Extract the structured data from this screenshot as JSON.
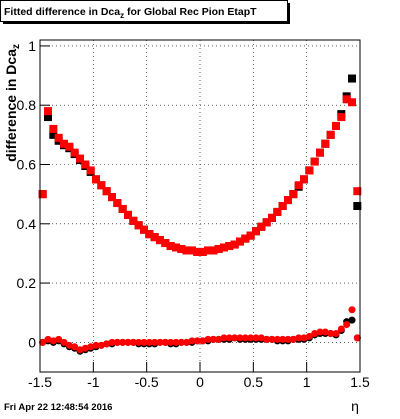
{
  "chart_data": {
    "type": "scatter",
    "title": [
      "Fitted difference in Dca",
      "z",
      " for Global Rec Pion EtapT"
    ],
    "y_label": [
      "difference in Dca",
      "z"
    ],
    "x_label": "η",
    "footer": "Fri Apr 22 12:48:54 2016",
    "xlim": [
      -1.5,
      1.5
    ],
    "ylim": [
      -0.1,
      1.02
    ],
    "xticks": [
      -1.5,
      -1,
      -0.5,
      0,
      0.5,
      1,
      1.5
    ],
    "yticks": [
      0,
      0.2,
      0.4,
      0.6,
      0.8,
      1
    ],
    "grid": true,
    "x": [
      -1.475,
      -1.425,
      -1.375,
      -1.325,
      -1.275,
      -1.225,
      -1.175,
      -1.125,
      -1.075,
      -1.025,
      -0.975,
      -0.925,
      -0.875,
      -0.825,
      -0.775,
      -0.725,
      -0.675,
      -0.625,
      -0.575,
      -0.525,
      -0.475,
      -0.425,
      -0.375,
      -0.325,
      -0.275,
      -0.225,
      -0.175,
      -0.125,
      -0.075,
      -0.025,
      0.025,
      0.075,
      0.125,
      0.175,
      0.225,
      0.275,
      0.325,
      0.375,
      0.425,
      0.475,
      0.525,
      0.575,
      0.625,
      0.675,
      0.725,
      0.775,
      0.825,
      0.875,
      0.925,
      0.975,
      1.025,
      1.075,
      1.125,
      1.175,
      1.225,
      1.275,
      1.325,
      1.375,
      1.425,
      1.475
    ],
    "series": [
      {
        "color": "#000000",
        "marker": "square",
        "values": [
          0.5,
          0.76,
          0.7,
          0.68,
          0.665,
          0.655,
          0.635,
          0.615,
          0.595,
          0.575,
          0.55,
          0.53,
          0.51,
          0.49,
          0.47,
          0.45,
          0.43,
          0.41,
          0.395,
          0.38,
          0.365,
          0.355,
          0.345,
          0.335,
          0.325,
          0.32,
          0.315,
          0.31,
          0.31,
          0.305,
          0.305,
          0.31,
          0.31,
          0.315,
          0.32,
          0.325,
          0.33,
          0.34,
          0.35,
          0.36,
          0.375,
          0.39,
          0.405,
          0.42,
          0.44,
          0.46,
          0.48,
          0.5,
          0.525,
          0.55,
          0.58,
          0.61,
          0.64,
          0.67,
          0.7,
          0.73,
          0.77,
          0.83,
          0.89,
          0.46
        ]
      },
      {
        "color": "#ff0000",
        "marker": "square",
        "values": [
          0.5,
          0.78,
          0.72,
          0.69,
          0.67,
          0.66,
          0.64,
          0.62,
          0.6,
          0.58,
          0.55,
          0.53,
          0.51,
          0.49,
          0.47,
          0.45,
          0.43,
          0.41,
          0.395,
          0.38,
          0.365,
          0.355,
          0.345,
          0.335,
          0.325,
          0.32,
          0.315,
          0.31,
          0.31,
          0.305,
          0.305,
          0.31,
          0.31,
          0.315,
          0.32,
          0.325,
          0.33,
          0.34,
          0.35,
          0.36,
          0.375,
          0.39,
          0.405,
          0.42,
          0.44,
          0.46,
          0.48,
          0.5,
          0.53,
          0.55,
          0.58,
          0.61,
          0.64,
          0.67,
          0.7,
          0.73,
          0.76,
          0.82,
          0.81,
          0.51
        ]
      },
      {
        "color": "#000000",
        "marker": "circle",
        "values": [
          0.0,
          0.005,
          0.0,
          0.005,
          -0.005,
          -0.015,
          -0.02,
          -0.03,
          -0.025,
          -0.02,
          -0.015,
          -0.01,
          -0.005,
          -0.005,
          0.0,
          0.0,
          0.0,
          0.0,
          -0.005,
          -0.005,
          -0.005,
          -0.005,
          0.0,
          0.0,
          -0.005,
          -0.005,
          0.0,
          0.0,
          0.0,
          0.005,
          0.005,
          0.005,
          0.01,
          0.01,
          0.01,
          0.01,
          0.015,
          0.01,
          0.01,
          0.01,
          0.01,
          0.01,
          0.01,
          0.01,
          0.005,
          0.005,
          0.005,
          0.01,
          0.01,
          0.01,
          0.015,
          0.025,
          0.03,
          0.03,
          0.03,
          0.025,
          0.04,
          0.07,
          0.075,
          0.015
        ]
      },
      {
        "color": "#ff0000",
        "marker": "circle",
        "values": [
          0.0,
          0.01,
          0.005,
          0.01,
          0.0,
          -0.01,
          -0.015,
          -0.025,
          -0.02,
          -0.015,
          -0.01,
          -0.01,
          -0.005,
          0.0,
          0.0,
          0.0,
          0.0,
          0.0,
          0.0,
          0.0,
          0.0,
          0.0,
          0.0,
          0.0,
          0.0,
          0.0,
          0.0,
          0.0,
          0.005,
          0.005,
          0.005,
          0.01,
          0.01,
          0.01,
          0.015,
          0.015,
          0.015,
          0.015,
          0.015,
          0.015,
          0.015,
          0.015,
          0.01,
          0.01,
          0.01,
          0.01,
          0.01,
          0.01,
          0.015,
          0.015,
          0.02,
          0.03,
          0.035,
          0.035,
          0.03,
          0.03,
          0.045,
          0.06,
          0.11,
          0.015
        ]
      }
    ]
  }
}
